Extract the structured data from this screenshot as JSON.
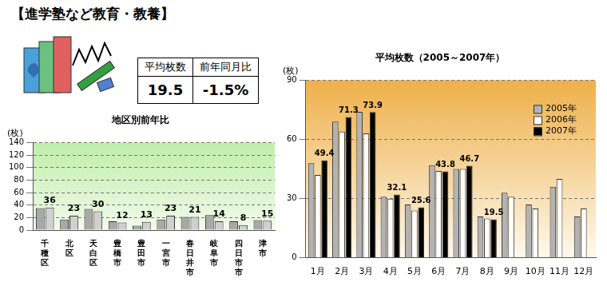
{
  "title": "【進学塾など教育・教養】",
  "summary": {
    "headers": [
      "平均枚数",
      "前年同月比"
    ],
    "values": [
      "19.5",
      "-1.5%"
    ]
  },
  "chart_data": [
    {
      "type": "bar",
      "title": "地区別前年比",
      "ylabel": "(枚)",
      "categories": [
        "千種区",
        "北区",
        "天白区",
        "豊橋市",
        "豊田市",
        "一宮市",
        "春日井市",
        "岐阜市",
        "四日市市",
        "津市"
      ],
      "series": [
        {
          "color": "#a9a9a9",
          "values": [
            35,
            17,
            34,
            14,
            7,
            17,
            21,
            24,
            14,
            16
          ]
        },
        {
          "color": "#d0d0d0",
          "data_labels": true,
          "values": [
            36,
            23,
            30,
            12,
            13,
            23,
            21,
            14,
            8,
            15
          ]
        }
      ],
      "ylim": [
        0,
        140
      ],
      "yticks": [
        0,
        20,
        40,
        60,
        80,
        100,
        120,
        140
      ],
      "grid": true
    },
    {
      "type": "bar",
      "title": "平均枚数（2005～2007年）",
      "ylabel": "(枚)",
      "categories": [
        "1月",
        "2月",
        "3月",
        "4月",
        "5月",
        "6月",
        "7月",
        "8月",
        "9月",
        "10月",
        "11月",
        "12月"
      ],
      "series": [
        {
          "name": "2005年",
          "color": "#b3b3b3",
          "values": [
            48,
            69,
            74,
            31,
            27,
            47,
            45,
            21,
            33,
            27,
            36,
            21
          ]
        },
        {
          "name": "2006年",
          "color": "#ffffff",
          "values": [
            42,
            64,
            63,
            30,
            24,
            44,
            45,
            20,
            31,
            25,
            40,
            25
          ]
        },
        {
          "name": "2007年",
          "color": "#000000",
          "data_labels": true,
          "values": [
            49.4,
            71.3,
            73.9,
            32.1,
            25.6,
            43.8,
            46.7,
            19.5,
            null,
            null,
            null,
            null
          ]
        }
      ],
      "ylim": [
        0,
        90
      ],
      "yticks": [
        0,
        30,
        60,
        90
      ],
      "grid": true,
      "legend": "upper right"
    }
  ]
}
